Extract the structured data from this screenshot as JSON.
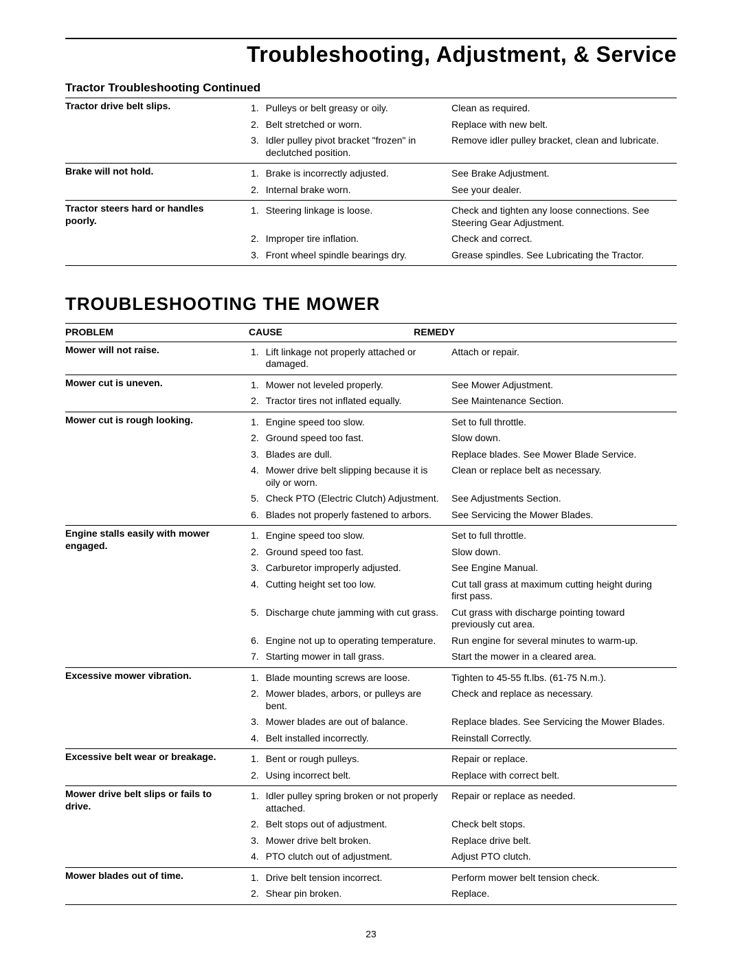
{
  "header": {
    "main_title": "Troubleshooting, Adjustment, & Service",
    "tractor_heading": "Tractor Troubleshooting Continued"
  },
  "tractor_rows": [
    {
      "problem": "Tractor drive belt slips.",
      "items": [
        {
          "n": "1.",
          "cause": "Pulleys or belt greasy or oily.",
          "remedy": "Clean as required."
        },
        {
          "n": "2.",
          "cause": "Belt stretched or worn.",
          "remedy": "Replace with new belt."
        },
        {
          "n": "3.",
          "cause": "Idler pulley pivot bracket \"frozen\" in declutched position.",
          "remedy": "Remove idler pulley bracket, clean and lubricate."
        }
      ]
    },
    {
      "problem": "Brake will not hold.",
      "items": [
        {
          "n": "1.",
          "cause": "Brake is incorrectly adjusted.",
          "remedy": "See Brake Adjustment."
        },
        {
          "n": "2.",
          "cause": "Internal brake worn.",
          "remedy": "See your dealer."
        }
      ]
    },
    {
      "problem": "Tractor steers hard or handles poorly.",
      "items": [
        {
          "n": "1.",
          "cause": "Steering linkage is loose.",
          "remedy": "Check and tighten any loose connections. See Steering Gear Adjustment."
        },
        {
          "n": "2.",
          "cause": "Improper tire inflation.",
          "remedy": "Check and correct."
        },
        {
          "n": "3.",
          "cause": "Front wheel spindle bearings dry.",
          "remedy": "Grease spindles. See Lubricating the Tractor."
        }
      ]
    }
  ],
  "mower": {
    "heading": "TROUBLESHOOTING THE MOWER",
    "columns": {
      "problem": "PROBLEM",
      "cause": "CAUSE",
      "remedy": "REMEDY"
    },
    "rows": [
      {
        "problem": "Mower will not raise.",
        "items": [
          {
            "n": "1.",
            "cause": "Lift linkage not properly attached or damaged.",
            "remedy": "Attach or repair."
          }
        ]
      },
      {
        "problem": "Mower cut is uneven.",
        "items": [
          {
            "n": "1.",
            "cause": "Mower not leveled properly.",
            "remedy": "See Mower Adjustment."
          },
          {
            "n": "2.",
            "cause": "Tractor tires not inflated equally.",
            "remedy": "See Maintenance Section."
          }
        ]
      },
      {
        "problem": "Mower cut is rough looking.",
        "items": [
          {
            "n": "1.",
            "cause": "Engine speed too slow.",
            "remedy": "Set to full throttle."
          },
          {
            "n": "2.",
            "cause": "Ground speed too fast.",
            "remedy": "Slow down."
          },
          {
            "n": "3.",
            "cause": "Blades are dull.",
            "remedy": "Replace blades. See Mower Blade Service."
          },
          {
            "n": "4.",
            "cause": "Mower drive belt slipping because it is oily or worn.",
            "remedy": "Clean or replace belt as necessary."
          },
          {
            "n": "5.",
            "cause": "Check PTO (Electric Clutch) Adjustment.",
            "remedy": "See Adjustments Section."
          },
          {
            "n": "6.",
            "cause": "Blades not properly fastened to arbors.",
            "remedy": "See Servicing the Mower Blades."
          }
        ]
      },
      {
        "problem": "Engine stalls easily with mower engaged.",
        "items": [
          {
            "n": "1.",
            "cause": "Engine speed too slow.",
            "remedy": "Set to full throttle."
          },
          {
            "n": "2.",
            "cause": "Ground speed too fast.",
            "remedy": "Slow down."
          },
          {
            "n": "3.",
            "cause": "Carburetor improperly adjusted.",
            "remedy": "See Engine Manual."
          },
          {
            "n": "4.",
            "cause": "Cutting height set too low.",
            "remedy": "Cut tall grass at maximum cutting height during first pass."
          },
          {
            "n": "5.",
            "cause": "Discharge chute jamming with cut grass.",
            "remedy": "Cut grass with discharge pointing toward previously cut area."
          },
          {
            "n": "6.",
            "cause": "Engine not up to operating temperature.",
            "remedy": "Run engine for several minutes to warm-up."
          },
          {
            "n": "7.",
            "cause": "Starting mower in tall grass.",
            "remedy": "Start the mower in a cleared area."
          }
        ]
      },
      {
        "problem": "Excessive mower vibration.",
        "items": [
          {
            "n": "1.",
            "cause": "Blade mounting screws are loose.",
            "remedy": "Tighten to 45-55 ft.lbs. (61-75 N.m.)."
          },
          {
            "n": "2.",
            "cause": "Mower blades, arbors, or pulleys are bent.",
            "remedy": "Check and replace as necessary."
          },
          {
            "n": "3.",
            "cause": "Mower blades are out of balance.",
            "remedy": "Replace blades. See Servicing the Mower Blades."
          },
          {
            "n": "4.",
            "cause": "Belt installed incorrectly.",
            "remedy": "Reinstall Correctly."
          }
        ]
      },
      {
        "problem": "Excessive belt wear or breakage.",
        "items": [
          {
            "n": "1.",
            "cause": "Bent or rough pulleys.",
            "remedy": "Repair or replace."
          },
          {
            "n": "2.",
            "cause": "Using incorrect belt.",
            "remedy": "Replace with correct belt."
          }
        ]
      },
      {
        "problem": "Mower drive belt slips or fails to drive.",
        "items": [
          {
            "n": "1.",
            "cause": "Idler pulley spring broken or not properly attached.",
            "remedy": "Repair or replace as needed."
          },
          {
            "n": "2.",
            "cause": "Belt stops out of adjustment.",
            "remedy": "Check belt stops."
          },
          {
            "n": "3.",
            "cause": "Mower drive belt broken.",
            "remedy": "Replace drive belt."
          },
          {
            "n": "4.",
            "cause": "PTO clutch out of adjustment.",
            "remedy": "Adjust PTO clutch."
          }
        ]
      },
      {
        "problem": "Mower blades out of time.",
        "items": [
          {
            "n": "1.",
            "cause": "Drive belt tension incorrect.",
            "remedy": "Perform mower belt tension check."
          },
          {
            "n": "2.",
            "cause": "Shear pin broken.",
            "remedy": "Replace."
          }
        ]
      }
    ]
  },
  "page_number": "23"
}
